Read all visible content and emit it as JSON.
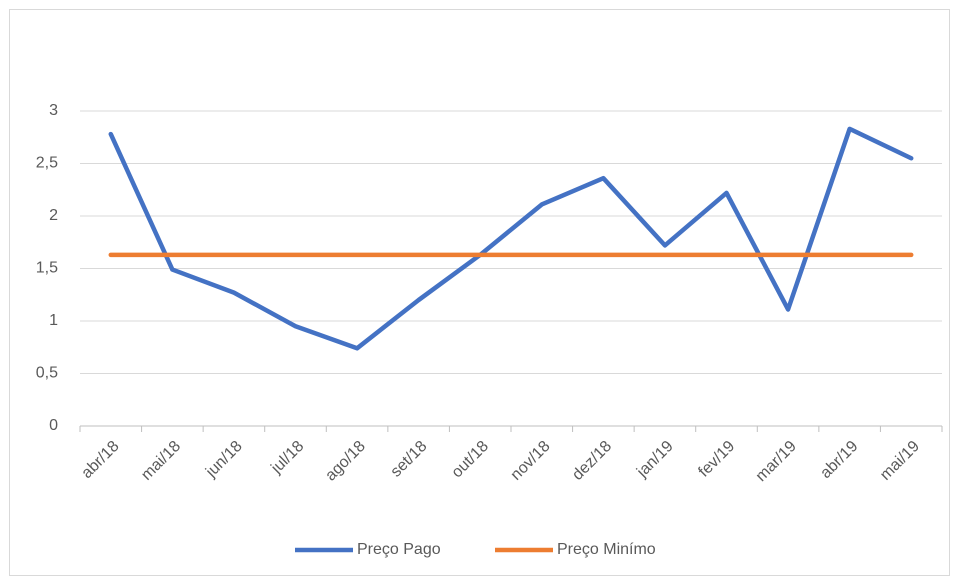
{
  "chart_data": {
    "type": "line",
    "categories": [
      "abr/18",
      "mai/18",
      "jun/18",
      "jul/18",
      "ago/18",
      "set/18",
      "out/18",
      "nov/18",
      "dez/18",
      "jan/19",
      "fev/19",
      "mar/19",
      "abr/19",
      "mai/19"
    ],
    "series": [
      {
        "name": "Preço Pago",
        "color": "#4472c4",
        "values": [
          2.78,
          1.49,
          1.27,
          0.95,
          0.74,
          1.2,
          1.63,
          2.11,
          2.36,
          1.72,
          2.22,
          1.11,
          2.83,
          2.55
        ]
      },
      {
        "name": "Preço Minímo",
        "color": "#ed7d31",
        "values": [
          1.63,
          1.63,
          1.63,
          1.63,
          1.63,
          1.63,
          1.63,
          1.63,
          1.63,
          1.63,
          1.63,
          1.63,
          1.63,
          1.63
        ]
      }
    ],
    "ylim": [
      0,
      3
    ],
    "yticks": [
      0,
      {
        "value": 0.5,
        "label": "0,5"
      },
      1,
      {
        "value": 1.5,
        "label": "1,5"
      },
      2,
      {
        "value": 2.5,
        "label": "2,5"
      },
      3
    ],
    "grid": true,
    "legend": "bottom"
  }
}
